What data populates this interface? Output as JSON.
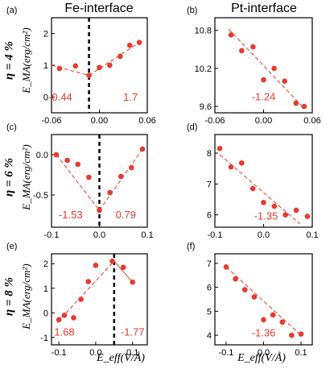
{
  "col_titles": [
    "Fe-interface",
    "Pt-interface"
  ],
  "row_labels": [
    "η = 4 %",
    "η = 6 %",
    "η = 8 %"
  ],
  "ylabel": "E_MA(erg/cm²)",
  "xlabel": "E_eff(V/Å)",
  "colors": {
    "data": "#e8392f",
    "axis": "#000000",
    "slope_text": "#e8392f"
  },
  "chart_data": [
    {
      "type": "scatter",
      "panel": "(a)",
      "row": 0,
      "col": 0,
      "x": [
        -0.05,
        -0.03,
        -0.013,
        0.0,
        0.013,
        0.026,
        0.038,
        0.05
      ],
      "y": [
        0.9,
        0.98,
        0.68,
        0.93,
        1.0,
        1.28,
        1.63,
        1.72
      ],
      "xlim": [
        -0.06,
        0.06
      ],
      "ylim": [
        -0.5,
        2.5
      ],
      "xticks": [
        -0.06,
        0.0,
        0.06
      ],
      "xtick_labels": [
        "-0.06",
        "0.00",
        "0.06"
      ],
      "yticks": [
        0,
        1,
        2
      ],
      "ytick_labels": [
        "0",
        "1",
        "2"
      ],
      "fit_lines": [
        {
          "style": "dashed",
          "x": [
            -0.06,
            -0.013
          ],
          "y": [
            1.0,
            0.68
          ]
        },
        {
          "style": "dashed",
          "x": [
            -0.013,
            0.05
          ],
          "y": [
            0.68,
            1.72
          ]
        }
      ],
      "vline": {
        "x": -0.013
      },
      "annotations": [
        {
          "text": "-0.44",
          "x": -0.049,
          "y": -0.12
        },
        {
          "text": "1.7",
          "x": 0.039,
          "y": -0.12
        }
      ]
    },
    {
      "type": "scatter",
      "panel": "(b)",
      "row": 0,
      "col": 1,
      "x": [
        -0.04,
        -0.027,
        -0.013,
        0.0,
        0.013,
        0.026,
        0.04,
        0.05
      ],
      "y": [
        10.73,
        10.48,
        10.54,
        10.02,
        10.2,
        10.0,
        9.65,
        9.6
      ],
      "xlim": [
        -0.06,
        0.06
      ],
      "ylim": [
        9.5,
        11.0
      ],
      "xticks": [
        -0.06,
        0.0,
        0.06
      ],
      "xtick_labels": [
        "-0.06",
        "0.00",
        "0.06"
      ],
      "yticks": [
        9.6,
        10.2,
        10.8
      ],
      "ytick_labels": [
        "9.6",
        "10.2",
        "10.8"
      ],
      "fit_lines": [
        {
          "style": "dashed",
          "x": [
            -0.043,
            0.05
          ],
          "y": [
            10.82,
            9.57
          ]
        }
      ],
      "annotations": [
        {
          "text": "-1.24",
          "x": 0.0,
          "y": 9.7
        }
      ]
    },
    {
      "type": "scatter",
      "panel": "(c)",
      "row": 1,
      "col": 0,
      "x": [
        -0.09,
        -0.067,
        -0.045,
        -0.022,
        0.0,
        0.022,
        0.045,
        0.067,
        0.09
      ],
      "y": [
        0.0,
        -0.07,
        -0.12,
        -0.28,
        -0.69,
        -0.47,
        -0.27,
        -0.16,
        0.07
      ],
      "xlim": [
        -0.1,
        0.1
      ],
      "ylim": [
        -0.9,
        0.25
      ],
      "xticks": [
        -0.1,
        0.0,
        0.1
      ],
      "xtick_labels": [
        "-0.1",
        "0.0",
        "0.1"
      ],
      "yticks": [
        -0.5,
        0.0
      ],
      "ytick_labels": [
        "-0.5",
        "0.0"
      ],
      "fit_lines": [
        {
          "style": "dashed",
          "x": [
            -0.09,
            0.0
          ],
          "y": [
            0.0,
            -0.69
          ]
        },
        {
          "style": "dashed",
          "x": [
            0.0,
            0.09
          ],
          "y": [
            -0.69,
            0.07
          ]
        }
      ],
      "vline": {
        "x": 0.0
      },
      "annotations": [
        {
          "text": "-1.53",
          "x": -0.06,
          "y": -0.79
        },
        {
          "text": "0.79",
          "x": 0.055,
          "y": -0.79
        }
      ]
    },
    {
      "type": "scatter",
      "panel": "(d)",
      "row": 1,
      "col": 1,
      "x": [
        -0.09,
        -0.067,
        -0.045,
        -0.022,
        0.0,
        0.022,
        0.045,
        0.067,
        0.09
      ],
      "y": [
        8.15,
        7.55,
        7.68,
        6.85,
        6.4,
        6.28,
        6.0,
        6.15,
        5.95
      ],
      "xlim": [
        -0.1,
        0.1
      ],
      "ylim": [
        5.6,
        8.6
      ],
      "xticks": [
        -0.1,
        0.0,
        0.1
      ],
      "xtick_labels": [
        "-0.1",
        "0.0",
        "0.1"
      ],
      "yticks": [
        6,
        7,
        8
      ],
      "ytick_labels": [
        "6",
        "7",
        "8"
      ],
      "fit_lines": [
        {
          "style": "dashed",
          "x": [
            -0.09,
            0.075
          ],
          "y": [
            7.95,
            5.7
          ]
        }
      ],
      "annotations": [
        {
          "text": "-1.35",
          "x": 0.005,
          "y": 5.85
        }
      ]
    },
    {
      "type": "scatter",
      "panel": "(e)",
      "row": 2,
      "col": 0,
      "x": [
        -0.1,
        -0.085,
        -0.06,
        -0.04,
        -0.02,
        0.0,
        0.045,
        0.075,
        0.1
      ],
      "y": [
        -0.28,
        -0.1,
        -0.2,
        0.55,
        1.27,
        1.93,
        2.1,
        1.85,
        1.25
      ],
      "xlim": [
        -0.12,
        0.14
      ],
      "ylim": [
        -1.3,
        2.4
      ],
      "xticks": [
        -0.1,
        0.0,
        0.1
      ],
      "xtick_labels": [
        "-0.1",
        "0.0",
        "0.1"
      ],
      "yticks": [
        -1,
        0,
        1,
        2
      ],
      "ytick_labels": [
        "-1",
        "0",
        "1",
        "2"
      ],
      "fit_lines": [
        {
          "style": "dashed",
          "x": [
            -0.105,
            0.05
          ],
          "y": [
            -0.4,
            2.1
          ]
        },
        {
          "style": "solid",
          "x": [
            0.05,
            0.095
          ],
          "y": [
            2.1,
            1.33
          ]
        }
      ],
      "vline": {
        "x": 0.05
      },
      "annotations": [
        {
          "text": "1.68",
          "x": -0.085,
          "y": -0.93
        },
        {
          "text": "-1.77",
          "x": 0.1,
          "y": -0.93
        }
      ]
    },
    {
      "type": "scatter",
      "panel": "(f)",
      "row": 2,
      "col": 1,
      "x": [
        -0.1,
        -0.075,
        -0.05,
        -0.025,
        0.0,
        0.025,
        0.05,
        0.075,
        0.1
      ],
      "y": [
        6.85,
        6.35,
        5.9,
        5.6,
        4.65,
        4.85,
        4.55,
        4.0,
        4.05
      ],
      "xlim": [
        -0.13,
        0.13
      ],
      "ylim": [
        3.6,
        7.4
      ],
      "xticks": [
        -0.1,
        0.0,
        0.1
      ],
      "xtick_labels": [
        "-0.1",
        "0.0",
        "0.1"
      ],
      "yticks": [
        4,
        5,
        6,
        7
      ],
      "ytick_labels": [
        "4",
        "5",
        "6",
        "7"
      ],
      "fit_lines": [
        {
          "style": "dashed",
          "x": [
            -0.1,
            0.1
          ],
          "y": [
            6.85,
            4.0
          ]
        }
      ],
      "annotations": [
        {
          "text": "-1.36",
          "x": 0.0,
          "y": 3.95
        }
      ]
    }
  ]
}
